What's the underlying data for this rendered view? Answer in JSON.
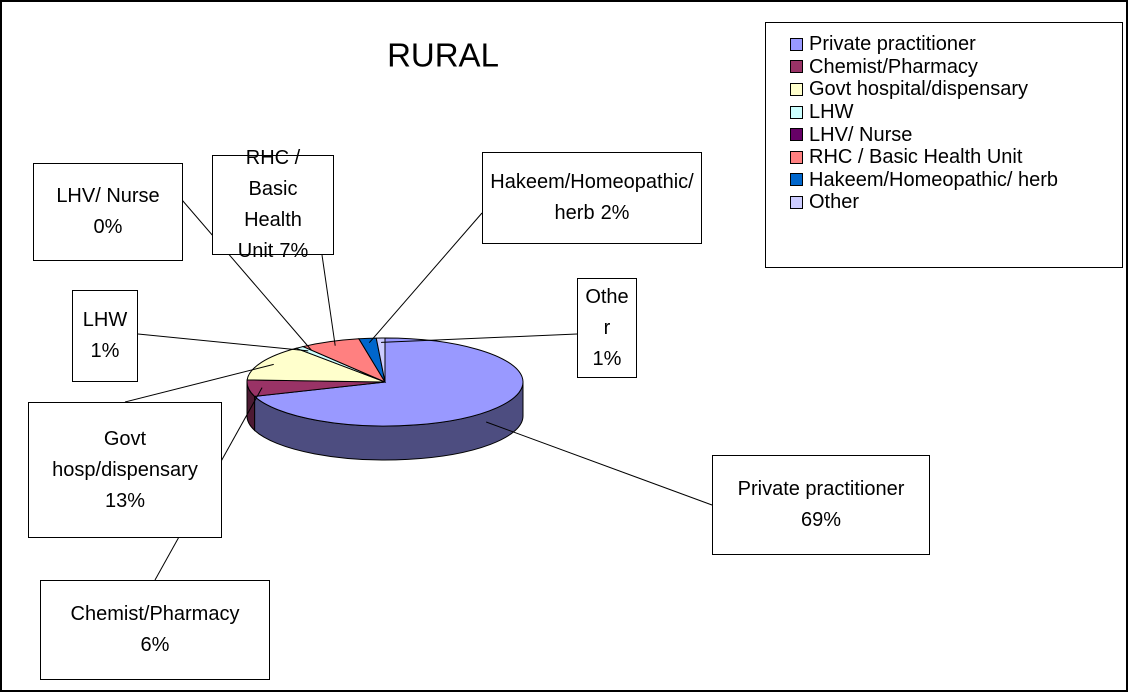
{
  "chart_data": {
    "type": "pie3d",
    "title": "RURAL",
    "categories": [
      "Private practitioner",
      "Chemist/Pharmacy",
      "Govt hospital/dispensary",
      "LHW",
      "LHV/ Nurse",
      "RHC / Basic Health Unit",
      "Hakeem/Homeopathic/ herb",
      "Other"
    ],
    "label_names": [
      "Private practitioner",
      "Chemist/Pharmacy",
      "Govt hosp/dispensary",
      "LHW",
      "LHV/ Nurse",
      "RHC / Basic Health Unit",
      "Hakeem/Homeopathic/ herb",
      "Other"
    ],
    "values": [
      69,
      6,
      13,
      1,
      0,
      7,
      2,
      1
    ],
    "value_labels": [
      "69%",
      "6%",
      "13%",
      "1%",
      "0%",
      "7%",
      "2%",
      "1%"
    ],
    "colors": [
      "#9999ff",
      "#993366",
      "#ffffcc",
      "#ccffff",
      "#660066",
      "#ff8080",
      "#0066cc",
      "#ccccff"
    ],
    "legend": "top-right"
  }
}
